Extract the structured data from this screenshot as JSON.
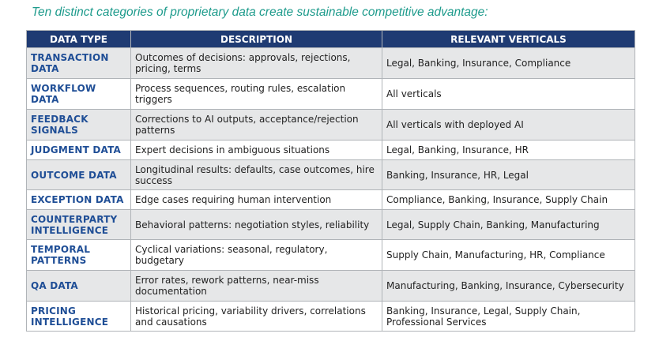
{
  "title": "Ten distinct categories of proprietary data create sustainable competitive advantage:",
  "table": {
    "headers": [
      "DATA TYPE",
      "DESCRIPTION",
      "RELEVANT VERTICALS"
    ],
    "rows": [
      [
        "TRANSACTION DATA",
        "Outcomes of decisions: approvals, rejections, pricing, terms",
        "Legal, Banking, Insurance, Compliance"
      ],
      [
        "WORKFLOW DATA",
        "Process sequences, routing rules, escalation triggers",
        "All verticals"
      ],
      [
        "FEEDBACK SIGNALS",
        "Corrections to AI outputs, acceptance/rejection patterns",
        "All verticals with deployed AI"
      ],
      [
        "JUDGMENT DATA",
        "Expert decisions in ambiguous situations",
        "Legal, Banking, Insurance, HR"
      ],
      [
        "OUTCOME DATA",
        "Longitudinal results: defaults, case outcomes, hire success",
        "Banking, Insurance, HR, Legal"
      ],
      [
        "EXCEPTION DATA",
        "Edge cases requiring human intervention",
        "Compliance, Banking, Insurance, Supply Chain"
      ],
      [
        "COUNTERPARTY INTELLIGENCE",
        "Behavioral patterns: negotiation styles, reliability",
        "Legal, Supply Chain, Banking, Manufacturing"
      ],
      [
        "TEMPORAL PATTERNS",
        "Cyclical variations: seasonal, regulatory, budgetary",
        "Supply Chain, Manufacturing, HR, Compliance"
      ],
      [
        "QA DATA",
        "Error rates, rework patterns, near-miss documentation",
        "Manufacturing, Banking, Insurance, Cybersecurity"
      ],
      [
        "PRICING INTELLIGENCE",
        "Historical pricing, variability drivers, correlations and causations",
        "Banking, Insurance, Legal, Supply Chain, Professional Services"
      ]
    ]
  }
}
